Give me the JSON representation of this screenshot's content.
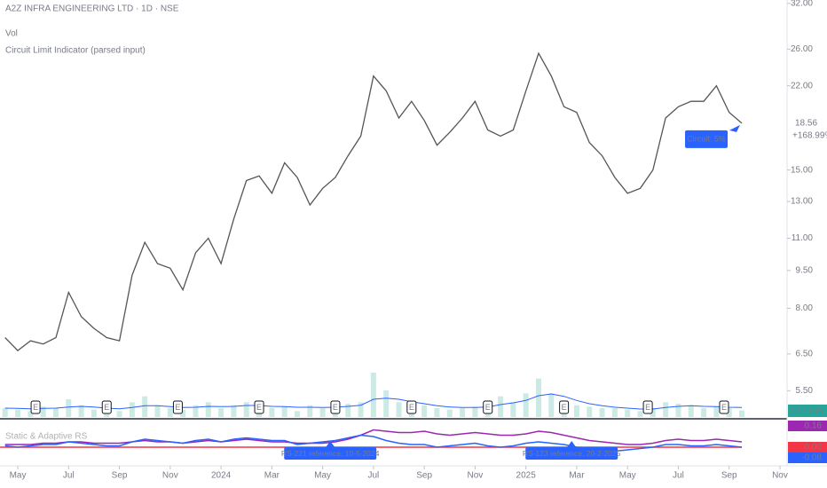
{
  "chart_data": {
    "type": "line",
    "title": "A2Z INFRA ENGINEERING LTD · 1D · NSE",
    "legend_lines": [
      "Vol",
      "Circuit Limit Indicator (parsed input)"
    ],
    "log_scale": true,
    "x": [
      3.5,
      4,
      4.5,
      5,
      5.5,
      6,
      6.5,
      7,
      7.5,
      8,
      8.5,
      9,
      9.5,
      10,
      10.5,
      11,
      11.5,
      12,
      12.5,
      13,
      13.5,
      14,
      14.5,
      15,
      15.5,
      16,
      16.5,
      17,
      17.5,
      18,
      18.5,
      19,
      19.5,
      20,
      20.5,
      21,
      21.5,
      22,
      22.5,
      23,
      23.5,
      24,
      24.5,
      25,
      25.5,
      26,
      26.5,
      27,
      27.5,
      28,
      28.5,
      29,
      29.5,
      30,
      30.5,
      31,
      31.5,
      32,
      32.5
    ],
    "xlim": [
      3.3,
      34.28
    ],
    "xticks": [
      {
        "value": 4,
        "label": "May"
      },
      {
        "value": 6,
        "label": "Jul"
      },
      {
        "value": 8,
        "label": "Sep"
      },
      {
        "value": 10,
        "label": "Nov"
      },
      {
        "value": 12,
        "label": "2024"
      },
      {
        "value": 14,
        "label": "Mar"
      },
      {
        "value": 16,
        "label": "May"
      },
      {
        "value": 18,
        "label": "Jul"
      },
      {
        "value": 20,
        "label": "Sep"
      },
      {
        "value": 22,
        "label": "Nov"
      },
      {
        "value": 24,
        "label": "2025"
      },
      {
        "value": 26,
        "label": "Mar"
      },
      {
        "value": 28,
        "label": "May"
      },
      {
        "value": 30,
        "label": "Jul"
      },
      {
        "value": 32,
        "label": "Sep"
      },
      {
        "value": 34,
        "label": "Nov"
      }
    ],
    "ylim": [
      4.84,
      32.5
    ],
    "yticks": [
      {
        "value": 32,
        "label": "32.00"
      },
      {
        "value": 26,
        "label": "26.00"
      },
      {
        "value": 22,
        "label": "22.00"
      },
      {
        "value": 15,
        "label": "15.00"
      },
      {
        "value": 13,
        "label": "13.00"
      },
      {
        "value": 11,
        "label": "11.00"
      },
      {
        "value": 9.5,
        "label": "9.50"
      },
      {
        "value": 8,
        "label": "8.00"
      },
      {
        "value": 6.5,
        "label": "6.50"
      },
      {
        "value": 5.5,
        "label": "5.50"
      }
    ],
    "series": [
      {
        "name": "Price",
        "color": "#555555",
        "values": [
          7.0,
          6.6,
          6.9,
          6.8,
          7.0,
          8.6,
          7.7,
          7.3,
          7.0,
          6.9,
          9.3,
          10.8,
          9.8,
          9.6,
          8.7,
          10.3,
          11.0,
          9.8,
          12.0,
          14.3,
          14.6,
          13.5,
          15.5,
          14.5,
          12.8,
          13.8,
          14.5,
          16.0,
          17.5,
          23.0,
          21.5,
          19.0,
          20.5,
          18.8,
          16.8,
          17.8,
          19.0,
          20.5,
          18.0,
          17.5,
          18.0,
          21.5,
          25.5,
          23.0,
          20.0,
          19.5,
          17.0,
          16.0,
          14.5,
          13.5,
          13.8,
          15.0,
          19.0,
          20.0,
          20.5,
          20.5,
          22.0,
          19.5,
          18.56
        ]
      }
    ],
    "change_label": "+168.99%",
    "price_label_color": "#ffffff",
    "volume": {
      "color": "#a8dcd6",
      "ma_color": "#2962ff",
      "ylim": [
        0,
        3000
      ],
      "last_label": "222.93K",
      "label_color": "#26a69a",
      "values": [
        300,
        250,
        200,
        350,
        300,
        600,
        400,
        250,
        200,
        200,
        500,
        700,
        400,
        300,
        250,
        400,
        500,
        300,
        400,
        500,
        400,
        300,
        350,
        200,
        400,
        300,
        350,
        450,
        500,
        1500,
        900,
        500,
        350,
        400,
        300,
        250,
        300,
        350,
        400,
        700,
        500,
        800,
        1300,
        800,
        500,
        400,
        350,
        300,
        300,
        250,
        200,
        300,
        500,
        450,
        400,
        300,
        350,
        300,
        222.93
      ],
      "ma": [
        300,
        290,
        280,
        290,
        300,
        340,
        360,
        340,
        300,
        280,
        320,
        380,
        380,
        350,
        320,
        330,
        360,
        350,
        360,
        390,
        390,
        360,
        350,
        330,
        330,
        320,
        330,
        360,
        400,
        600,
        640,
        600,
        520,
        450,
        380,
        340,
        320,
        320,
        340,
        420,
        480,
        560,
        720,
        780,
        700,
        560,
        450,
        380,
        330,
        300,
        270,
        270,
        320,
        360,
        380,
        360,
        350,
        330,
        320
      ]
    },
    "earnings": {
      "label": "E",
      "x": [
        4.7,
        7.5,
        10.3,
        13.5,
        16.5,
        19.5,
        22.5,
        25.5,
        28.8,
        31.8
      ]
    },
    "circuit": {
      "text": "Circuit: 5%",
      "x": 32.5,
      "color": "#2962ff"
    },
    "rs": {
      "title": "Static & Adaptive RS",
      "ylim": [
        -0.12,
        0.2
      ],
      "baseline": 0,
      "baseline_color": "#f23645",
      "yticks": [
        {
          "value": 0.16,
          "label": "0.16",
          "color": "#9c27b0"
        },
        {
          "value": 0,
          "label": "0.00",
          "color": "#f23645"
        },
        {
          "value": -0.08,
          "label": "-0.08",
          "color": "#2962ff"
        }
      ],
      "series": [
        {
          "name": "Adaptive",
          "color": "#9c27b0",
          "values": [
            0.02,
            0.02,
            0.02,
            0.03,
            0.03,
            0.04,
            0.04,
            0.03,
            0.03,
            0.03,
            0.04,
            0.05,
            0.04,
            0.04,
            0.03,
            0.04,
            0.05,
            0.04,
            0.05,
            0.06,
            0.05,
            0.04,
            0.04,
            0.03,
            0.03,
            0.03,
            0.04,
            0.06,
            0.09,
            0.13,
            0.12,
            0.11,
            0.11,
            0.12,
            0.1,
            0.09,
            0.1,
            0.11,
            0.1,
            0.09,
            0.09,
            0.1,
            0.12,
            0.11,
            0.09,
            0.07,
            0.05,
            0.04,
            0.03,
            0.02,
            0.02,
            0.03,
            0.05,
            0.06,
            0.05,
            0.05,
            0.06,
            0.05,
            0.04
          ]
        },
        {
          "name": "Static",
          "color": "#2962ff",
          "values": [
            0.01,
            0.0,
            0.01,
            0.02,
            0.02,
            0.04,
            0.03,
            0.02,
            0.01,
            0.01,
            0.04,
            0.06,
            0.05,
            0.04,
            0.03,
            0.05,
            0.06,
            0.04,
            0.06,
            0.07,
            0.06,
            0.05,
            0.05,
            0.02,
            0.03,
            0.04,
            0.05,
            0.07,
            0.09,
            0.08,
            0.05,
            0.03,
            0.02,
            0.02,
            0.0,
            0.01,
            0.02,
            0.03,
            0.01,
            0.0,
            0.01,
            0.03,
            0.04,
            0.03,
            0.02,
            0.0,
            -0.01,
            -0.02,
            -0.03,
            -0.02,
            -0.01,
            0.0,
            0.02,
            0.02,
            0.01,
            0.01,
            0.02,
            0.01,
            0.0
          ]
        }
      ],
      "annotations": [
        {
          "text": "RS-221 reference, 10-5-2024",
          "x": 16.3
        },
        {
          "text": "RS-123 reference, 20-2-2025",
          "x": 25.8
        }
      ]
    }
  }
}
